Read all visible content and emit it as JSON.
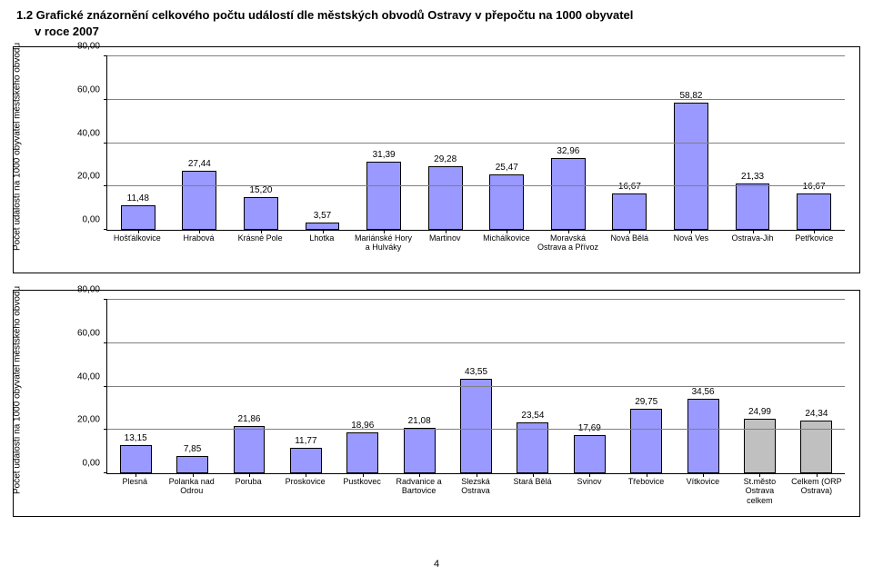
{
  "title_line1": "1.2  Grafické znázornění celkového počtu událostí dle městských obvodů Ostravy v přepočtu na 1000 obyvatel",
  "title_line2": "v roce 2007",
  "page_number": "4",
  "y_axis_label": "Počet událostí na 1000 obyvatel městského obvodu",
  "chart1": {
    "ymax": 80,
    "ymin": 0,
    "ytick_step": 20,
    "yticks": [
      {
        "pos": 0,
        "label": "0,00"
      },
      {
        "pos": 20,
        "label": "20,00"
      },
      {
        "pos": 40,
        "label": "40,00"
      },
      {
        "pos": 60,
        "label": "60,00"
      },
      {
        "pos": 80,
        "label": "80,00"
      }
    ],
    "bar_color": "#9999ff",
    "bar_border": "#000000",
    "grid_color": "#808080",
    "background": "#ffffff",
    "items": [
      {
        "label": "Hošťálkovice",
        "value": 11.48,
        "value_label": "11,48"
      },
      {
        "label": "Hrabová",
        "value": 27.44,
        "value_label": "27,44"
      },
      {
        "label": "Krásné Pole",
        "value": 15.2,
        "value_label": "15,20"
      },
      {
        "label": "Lhotka",
        "value": 3.57,
        "value_label": "3,57"
      },
      {
        "label": "Mariánské Hory a Hulváky",
        "value": 31.39,
        "value_label": "31,39"
      },
      {
        "label": "Martinov",
        "value": 29.28,
        "value_label": "29,28"
      },
      {
        "label": "Michálkovice",
        "value": 25.47,
        "value_label": "25,47"
      },
      {
        "label": "Moravská Ostrava a Přívoz",
        "value": 32.96,
        "value_label": "32,96"
      },
      {
        "label": "Nová Bělá",
        "value": 16.67,
        "value_label": "16,67"
      },
      {
        "label": "Nová Ves",
        "value": 58.82,
        "value_label": "58,82"
      },
      {
        "label": "Ostrava-Jih",
        "value": 21.33,
        "value_label": "21,33"
      },
      {
        "label": "Petřkovice",
        "value": 16.67,
        "value_label": "16,67"
      }
    ]
  },
  "chart2": {
    "ymax": 80,
    "ymin": 0,
    "ytick_step": 20,
    "yticks": [
      {
        "pos": 0,
        "label": "0,00"
      },
      {
        "pos": 20,
        "label": "20,00"
      },
      {
        "pos": 40,
        "label": "40,00"
      },
      {
        "pos": 60,
        "label": "60,00"
      },
      {
        "pos": 80,
        "label": "80,00"
      }
    ],
    "bar_color_default": "#9999ff",
    "bar_color_alt": "#c0c0c0",
    "bar_border": "#000000",
    "grid_color": "#808080",
    "background": "#ffffff",
    "items": [
      {
        "label": "Plesná",
        "value": 13.15,
        "value_label": "13,15",
        "color": "#9999ff"
      },
      {
        "label": "Polanka nad Odrou",
        "value": 7.85,
        "value_label": "7,85",
        "color": "#9999ff"
      },
      {
        "label": "Poruba",
        "value": 21.86,
        "value_label": "21,86",
        "color": "#9999ff"
      },
      {
        "label": "Proskovice",
        "value": 11.77,
        "value_label": "11,77",
        "color": "#9999ff"
      },
      {
        "label": "Pustkovec",
        "value": 18.96,
        "value_label": "18,96",
        "color": "#9999ff"
      },
      {
        "label": "Radvanice a Bartovice",
        "value": 21.08,
        "value_label": "21,08",
        "color": "#9999ff"
      },
      {
        "label": "Slezská Ostrava",
        "value": 43.55,
        "value_label": "43,55",
        "color": "#9999ff"
      },
      {
        "label": "Stará Bělá",
        "value": 23.54,
        "value_label": "23,54",
        "color": "#9999ff"
      },
      {
        "label": "Svinov",
        "value": 17.69,
        "value_label": "17,69",
        "color": "#9999ff"
      },
      {
        "label": "Třebovice",
        "value": 29.75,
        "value_label": "29,75",
        "color": "#9999ff"
      },
      {
        "label": "Vítkovice",
        "value": 34.56,
        "value_label": "34,56",
        "color": "#9999ff"
      },
      {
        "label": "St.město Ostrava celkem",
        "value": 24.99,
        "value_label": "24,99",
        "color": "#c0c0c0"
      },
      {
        "label": "Celkem (ORP Ostrava)",
        "value": 24.34,
        "value_label": "24,34",
        "color": "#c0c0c0"
      }
    ]
  }
}
